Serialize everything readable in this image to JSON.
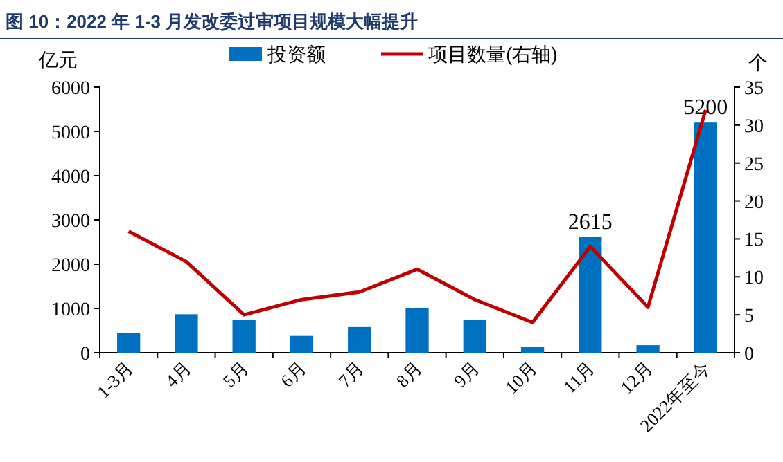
{
  "chart_data": {
    "type": "bar",
    "title": "图 10：2022 年 1-3 月发改委过审项目规模大幅提升",
    "ylabel": "亿元",
    "y2label": "个",
    "categories": [
      "1-3月",
      "4月",
      "5月",
      "6月",
      "7月",
      "8月",
      "9月",
      "10月",
      "11月",
      "12月",
      "2022年至今"
    ],
    "series": [
      {
        "name": "投资额",
        "color": "#0070c0",
        "values": [
          450,
          870,
          750,
          380,
          580,
          1000,
          740,
          130,
          2615,
          170,
          5200
        ],
        "value_labels": [
          null,
          null,
          null,
          null,
          null,
          null,
          null,
          null,
          "2615",
          null,
          "5200"
        ]
      },
      {
        "name": "项目数量(右轴)",
        "type": "line",
        "axis": "y2",
        "color": "#c00000",
        "values": [
          16,
          12,
          5,
          7,
          8,
          11,
          7,
          4,
          14,
          6,
          32
        ]
      }
    ],
    "ylim": [
      0,
      6000
    ],
    "yticks": [
      0,
      1000,
      2000,
      3000,
      4000,
      5000,
      6000
    ],
    "y2lim": [
      0,
      35
    ],
    "y2ticks": [
      0,
      5,
      10,
      15,
      20,
      25,
      30,
      35
    ],
    "legend": "top",
    "grid": false,
    "marker": "none",
    "line_style": "solid"
  }
}
